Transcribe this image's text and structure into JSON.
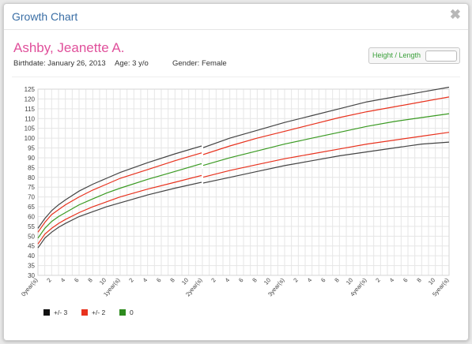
{
  "window": {
    "title": "Growth Chart",
    "close_glyph": "✖"
  },
  "patient": {
    "name": "Ashby, Jeanette A.",
    "birthdate": "Birthdate: January 26, 2013",
    "age": "Age: 3 y/o",
    "gender": "Gender: Female"
  },
  "toggle": {
    "label": "Height / Length"
  },
  "chart_data": {
    "type": "line",
    "ylim": [
      30,
      125
    ],
    "yticks": [
      30,
      35,
      40,
      45,
      50,
      55,
      60,
      65,
      70,
      75,
      80,
      85,
      90,
      95,
      100,
      105,
      110,
      115,
      120,
      125
    ],
    "xlim": [
      0,
      60
    ],
    "xticks": [
      {
        "x": 0,
        "label": "0year(s)"
      },
      {
        "x": 2,
        "label": "2"
      },
      {
        "x": 4,
        "label": "4"
      },
      {
        "x": 6,
        "label": "6"
      },
      {
        "x": 8,
        "label": "8"
      },
      {
        "x": 10,
        "label": "10"
      },
      {
        "x": 12,
        "label": "1year(s)"
      },
      {
        "x": 14,
        "label": "2"
      },
      {
        "x": 16,
        "label": "4"
      },
      {
        "x": 18,
        "label": "6"
      },
      {
        "x": 20,
        "label": "8"
      },
      {
        "x": 22,
        "label": "10"
      },
      {
        "x": 24,
        "label": "2year(s)"
      },
      {
        "x": 26,
        "label": "2"
      },
      {
        "x": 28,
        "label": "4"
      },
      {
        "x": 30,
        "label": "6"
      },
      {
        "x": 32,
        "label": "8"
      },
      {
        "x": 34,
        "label": "10"
      },
      {
        "x": 36,
        "label": "3year(s)"
      },
      {
        "x": 38,
        "label": "2"
      },
      {
        "x": 40,
        "label": "4"
      },
      {
        "x": 42,
        "label": "6"
      },
      {
        "x": 44,
        "label": "8"
      },
      {
        "x": 46,
        "label": "10"
      },
      {
        "x": 48,
        "label": "4year(s)"
      },
      {
        "x": 50,
        "label": "2"
      },
      {
        "x": 52,
        "label": "4"
      },
      {
        "x": 54,
        "label": "6"
      },
      {
        "x": 56,
        "label": "8"
      },
      {
        "x": 58,
        "label": "10"
      },
      {
        "x": 60,
        "label": "5year(s)"
      }
    ],
    "grid": true,
    "legend_position": "bottom-left",
    "legend": [
      {
        "label": "+/- 3",
        "color": "#111111"
      },
      {
        "label": "+/- 2",
        "color": "#e8321e"
      },
      {
        "label": "0",
        "color": "#2e8b1e"
      }
    ],
    "series": [
      {
        "group": "+/- 3",
        "color": "#444444",
        "x": [
          0,
          1,
          2,
          3,
          4,
          6,
          8,
          10,
          12,
          16,
          20,
          23.9,
          24,
          28,
          32,
          36,
          40,
          44,
          48,
          52,
          56,
          60
        ],
        "y": [
          54,
          59,
          63,
          66,
          68.5,
          73,
          76.5,
          79.5,
          82.5,
          87.5,
          92,
          96,
          95,
          100,
          104,
          108,
          111.5,
          115,
          118.5,
          121,
          123.5,
          126
        ]
      },
      {
        "group": "+/- 2",
        "color": "#e8321e",
        "x": [
          0,
          1,
          2,
          3,
          4,
          6,
          8,
          10,
          12,
          16,
          20,
          23.9,
          24,
          28,
          32,
          36,
          40,
          44,
          48,
          52,
          56,
          60
        ],
        "y": [
          52,
          57,
          61,
          63.5,
          66,
          70,
          73.5,
          76.5,
          79.5,
          84,
          88.5,
          92.5,
          91.5,
          96,
          100,
          103.5,
          107,
          110.5,
          113.5,
          116,
          118.5,
          121
        ]
      },
      {
        "group": "0",
        "color": "#3a9a22",
        "x": [
          0,
          1,
          2,
          3,
          4,
          6,
          8,
          10,
          12,
          16,
          20,
          23.9,
          24,
          28,
          32,
          36,
          40,
          44,
          48,
          52,
          56,
          60
        ],
        "y": [
          49,
          54,
          57.5,
          60,
          62,
          66,
          69,
          72,
          74.5,
          79,
          83,
          87,
          86,
          90,
          93.5,
          97,
          100,
          103,
          106,
          108.5,
          110.5,
          112.5
        ]
      },
      {
        "group": "+/- 2",
        "color": "#e8321e",
        "x": [
          0,
          1,
          2,
          3,
          4,
          6,
          8,
          10,
          12,
          16,
          20,
          23.9,
          24,
          28,
          32,
          36,
          40,
          44,
          48,
          52,
          56,
          60
        ],
        "y": [
          46,
          51,
          54,
          56.5,
          58.5,
          62,
          65,
          67.5,
          70,
          74,
          77.5,
          81,
          80,
          83.5,
          86.5,
          89.5,
          92,
          94.5,
          97,
          99,
          101,
          103
        ]
      },
      {
        "group": "+/- 3",
        "color": "#444444",
        "x": [
          0,
          1,
          2,
          3,
          4,
          6,
          8,
          10,
          12,
          16,
          20,
          23.9,
          24,
          28,
          32,
          36,
          40,
          44,
          48,
          52,
          56,
          60
        ],
        "y": [
          44,
          49,
          52,
          54.5,
          56.5,
          60,
          62.5,
          65,
          67,
          71,
          74.5,
          77.5,
          77,
          80,
          83,
          86,
          88.5,
          91,
          93,
          95,
          97,
          98
        ]
      }
    ]
  }
}
